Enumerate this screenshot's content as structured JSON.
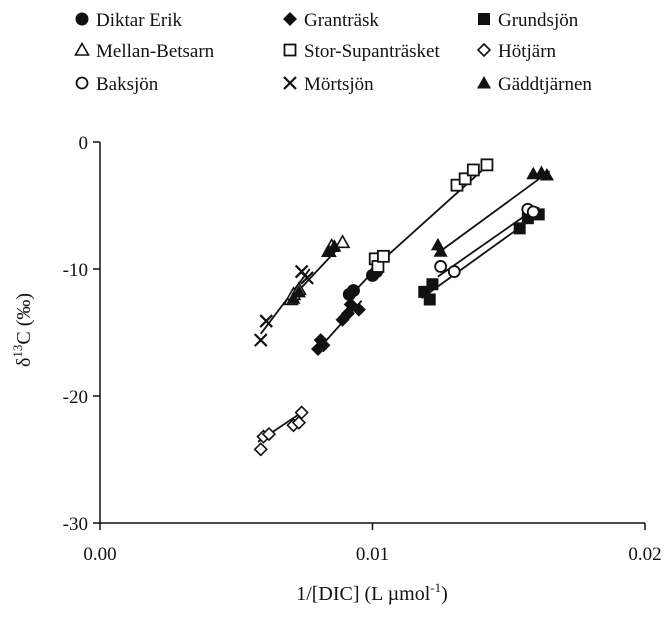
{
  "chart_data": {
    "type": "scatter",
    "title": "",
    "xlabel": "1/[DIC] (L µmol⁻¹)",
    "xlabel_parts": {
      "main": "1/[DIC] (L µmol",
      "sup": "-1",
      "tail": ")"
    },
    "ylabel_parts": {
      "delta": "δ",
      "sup": "13",
      "main": "C (‰)"
    },
    "xlim": [
      0.0,
      0.02
    ],
    "ylim": [
      -30,
      0
    ],
    "x_ticks": [
      0.0,
      0.01,
      0.02
    ],
    "x_tick_labels": [
      "0.00",
      "0.01",
      "0.02"
    ],
    "y_ticks": [
      -30,
      -20,
      -10,
      0
    ],
    "y_tick_labels": [
      "-30",
      "-20",
      "-10",
      "0"
    ],
    "grid": false,
    "legend_placement": "top",
    "series": [
      {
        "name": "Diktar Erik",
        "marker": "circle-filled",
        "x": [
          0.00915,
          0.0093,
          0.01,
          0.01015
        ],
        "y": [
          -12.0,
          -11.7,
          -10.5,
          -10.2
        ],
        "fit": [
          [
            0.0091,
            -12.3
          ],
          [
            0.0102,
            -9.8
          ]
        ]
      },
      {
        "name": "Granträsk",
        "marker": "diamond-filled",
        "x": [
          0.008,
          0.0081,
          0.0082,
          0.0089,
          0.0091,
          0.0092,
          0.0095
        ],
        "y": [
          -16.3,
          -15.6,
          -16.0,
          -14.0,
          -13.5,
          -12.8,
          -13.2
        ],
        "fit": [
          [
            0.0079,
            -16.6
          ],
          [
            0.0096,
            -12.5
          ]
        ]
      },
      {
        "name": "Grundsjön",
        "marker": "square-filled",
        "x": [
          0.0119,
          0.0121,
          0.0122,
          0.0154,
          0.0157,
          0.0159,
          0.0161
        ],
        "y": [
          -11.8,
          -12.4,
          -11.2,
          -6.8,
          -6.0,
          -5.6,
          -5.7
        ],
        "fit": [
          [
            0.0118,
            -12.3
          ],
          [
            0.0162,
            -5.5
          ]
        ]
      },
      {
        "name": "Mellan-Betsarn",
        "marker": "triangle-open",
        "x": [
          0.007,
          0.0071,
          0.0073,
          0.0084,
          0.0085,
          0.0089
        ],
        "y": [
          -12.4,
          -12.0,
          -11.6,
          -8.6,
          -8.2,
          -7.9
        ],
        "fit": [
          [
            0.0069,
            -12.6
          ],
          [
            0.0089,
            -8.0
          ]
        ]
      },
      {
        "name": "Stor-Supanträsket",
        "marker": "square-open",
        "x": [
          0.0101,
          0.0102,
          0.0104,
          0.0131,
          0.0134,
          0.0137,
          0.0142
        ],
        "y": [
          -9.2,
          -9.8,
          -9.0,
          -3.4,
          -2.9,
          -2.2,
          -1.8
        ],
        "fit": [
          [
            0.01,
            -10.0
          ],
          [
            0.0143,
            -1.7
          ]
        ]
      },
      {
        "name": "Hötjärn",
        "marker": "diamond-open",
        "x": [
          0.0059,
          0.006,
          0.0062,
          0.0071,
          0.0073,
          0.0074
        ],
        "y": [
          -24.2,
          -23.2,
          -23.0,
          -22.3,
          -22.1,
          -21.3
        ],
        "fit": [
          [
            0.0058,
            -23.6
          ],
          [
            0.0074,
            -21.3
          ]
        ]
      },
      {
        "name": "Baksjön",
        "marker": "circle-open",
        "x": [
          0.0125,
          0.013,
          0.0157,
          0.0159
        ],
        "y": [
          -9.8,
          -10.2,
          -5.3,
          -5.5
        ],
        "fit": [
          [
            0.0124,
            -10.6
          ],
          [
            0.016,
            -5.2
          ]
        ]
      },
      {
        "name": "Mörtsjön",
        "marker": "cross",
        "x": [
          0.0059,
          0.0061,
          0.0074,
          0.0076
        ],
        "y": [
          -15.6,
          -14.1,
          -10.2,
          -10.7
        ],
        "fit": [
          [
            0.0059,
            -15.1
          ],
          [
            0.0077,
            -10.0
          ]
        ]
      },
      {
        "name": "Gäddtjärnen",
        "marker": "triangle-filled",
        "x": [
          0.0071,
          0.0073,
          0.0084,
          0.0086,
          0.0124,
          0.0125,
          0.0159,
          0.0162,
          0.0164
        ],
        "y": [
          -12.3,
          -11.8,
          -8.6,
          -8.2,
          -8.1,
          -8.6,
          -2.5,
          -2.4,
          -2.6
        ],
        "fit": [
          [
            0.0123,
            -8.9
          ],
          [
            0.0165,
            -2.3
          ]
        ]
      }
    ]
  }
}
